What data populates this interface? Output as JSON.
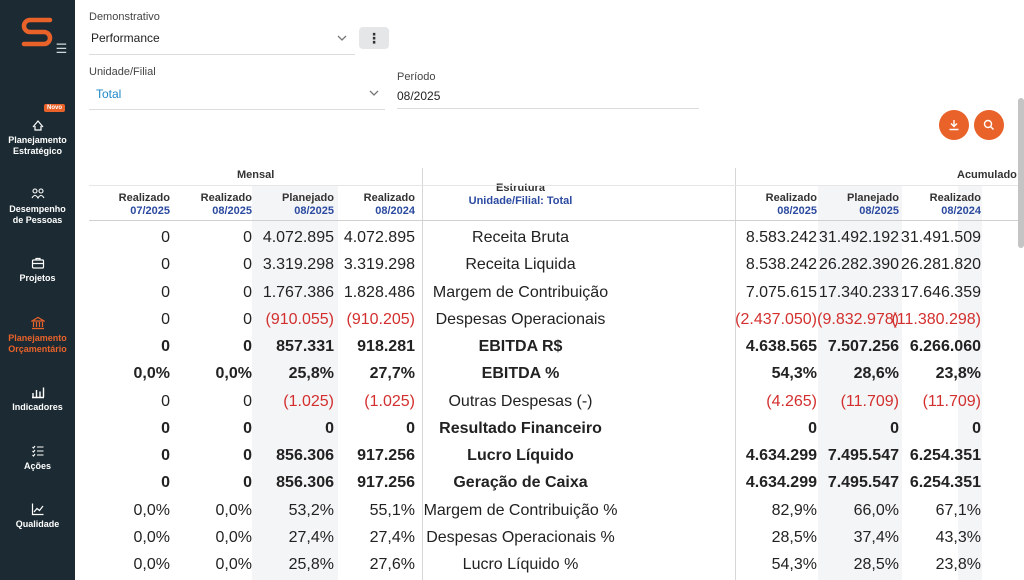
{
  "sidebar": {
    "badge": "Novo",
    "items": [
      {
        "label1": "Planejamento",
        "label2": "Estratégico",
        "icon": "strategy-icon",
        "active": false
      },
      {
        "label1": "Desempenho",
        "label2": "de Pessoas",
        "icon": "people-icon",
        "active": false
      },
      {
        "label1": "Projetos",
        "label2": "",
        "icon": "briefcase-icon",
        "active": false
      },
      {
        "label1": "Planejamento",
        "label2": "Orçamentário",
        "icon": "bank-icon",
        "active": true
      },
      {
        "label1": "Indicadores",
        "label2": "",
        "icon": "bar-chart-icon",
        "active": false
      },
      {
        "label1": "Ações",
        "label2": "",
        "icon": "checklist-icon",
        "active": false
      },
      {
        "label1": "Qualidade",
        "label2": "",
        "icon": "line-chart-icon",
        "active": false
      }
    ]
  },
  "filters": {
    "demonstrativo_label": "Demonstrativo",
    "demonstrativo_value": "Performance",
    "unidade_label": "Unidade/Filial",
    "unidade_value": "Total",
    "periodo_label": "Período",
    "periodo_value": "08/2025",
    "menu_glyph": "⋮"
  },
  "colors": {
    "accent": "#e8622a",
    "sidebar": "#1c2b33",
    "negative": "#d32f2f",
    "header_sub": "#2b4aa0"
  },
  "table": {
    "group_mensal": "Mensal",
    "group_acumulado": "Acumulado",
    "estrutura_title": "Estrutura",
    "estrutura_sub": "Unidade/Filial: Total",
    "mensal_cols": [
      {
        "top": "Realizado",
        "sub": "07/2025"
      },
      {
        "top": "Realizado",
        "sub": "08/2025"
      },
      {
        "top": "Planejado",
        "sub": "08/2025"
      },
      {
        "top": "Realizado",
        "sub": "08/2024"
      }
    ],
    "acum_cols": [
      {
        "top": "Realizado",
        "sub": "08/2025"
      },
      {
        "top": "Planejado",
        "sub": "08/2025"
      },
      {
        "top": "Realizado",
        "sub": "08/2024"
      }
    ],
    "rows": [
      {
        "name": "Receita Bruta",
        "bold": false,
        "m": [
          "0",
          "0",
          "4.072.895",
          "4.072.895"
        ],
        "a": [
          "8.583.242",
          "31.492.192",
          "31.491.509"
        ]
      },
      {
        "name": "Receita Liquida",
        "bold": false,
        "m": [
          "0",
          "0",
          "3.319.298",
          "3.319.298"
        ],
        "a": [
          "8.538.242",
          "26.282.390",
          "26.281.820"
        ]
      },
      {
        "name": "Margem de Contribuição",
        "bold": false,
        "m": [
          "0",
          "0",
          "1.767.386",
          "1.828.486"
        ],
        "a": [
          "7.075.615",
          "17.340.233",
          "17.646.359"
        ]
      },
      {
        "name": "Despesas Operacionais",
        "bold": false,
        "m": [
          "0",
          "0",
          "(910.055)",
          "(910.205)"
        ],
        "a": [
          "(2.437.050)",
          "(9.832.978)",
          "(11.380.298)"
        ]
      },
      {
        "name": "EBITDA R$",
        "bold": true,
        "m": [
          "0",
          "0",
          "857.331",
          "918.281"
        ],
        "a": [
          "4.638.565",
          "7.507.256",
          "6.266.060"
        ]
      },
      {
        "name": "EBITDA %",
        "bold": true,
        "m": [
          "0,0%",
          "0,0%",
          "25,8%",
          "27,7%"
        ],
        "a": [
          "54,3%",
          "28,6%",
          "23,8%"
        ]
      },
      {
        "name": "Outras Despesas (-)",
        "bold": false,
        "m": [
          "0",
          "0",
          "(1.025)",
          "(1.025)"
        ],
        "a": [
          "(4.265)",
          "(11.709)",
          "(11.709)"
        ]
      },
      {
        "name": "Resultado Financeiro",
        "bold": true,
        "m": [
          "0",
          "0",
          "0",
          "0"
        ],
        "a": [
          "0",
          "0",
          "0"
        ]
      },
      {
        "name": "Lucro Líquido",
        "bold": true,
        "m": [
          "0",
          "0",
          "856.306",
          "917.256"
        ],
        "a": [
          "4.634.299",
          "7.495.547",
          "6.254.351"
        ]
      },
      {
        "name": "Geração de Caixa",
        "bold": true,
        "m": [
          "0",
          "0",
          "856.306",
          "917.256"
        ],
        "a": [
          "4.634.299",
          "7.495.547",
          "6.254.351"
        ]
      },
      {
        "name": "Margem de Contribuição %",
        "bold": false,
        "m": [
          "0,0%",
          "0,0%",
          "53,2%",
          "55,1%"
        ],
        "a": [
          "82,9%",
          "66,0%",
          "67,1%"
        ]
      },
      {
        "name": "Despesas Operacionais %",
        "bold": false,
        "m": [
          "0,0%",
          "0,0%",
          "27,4%",
          "27,4%"
        ],
        "a": [
          "28,5%",
          "37,4%",
          "43,3%"
        ]
      },
      {
        "name": "Lucro Líquido %",
        "bold": false,
        "m": [
          "0,0%",
          "0,0%",
          "25,8%",
          "27,6%"
        ],
        "a": [
          "54,3%",
          "28,5%",
          "23,8%"
        ]
      }
    ]
  }
}
